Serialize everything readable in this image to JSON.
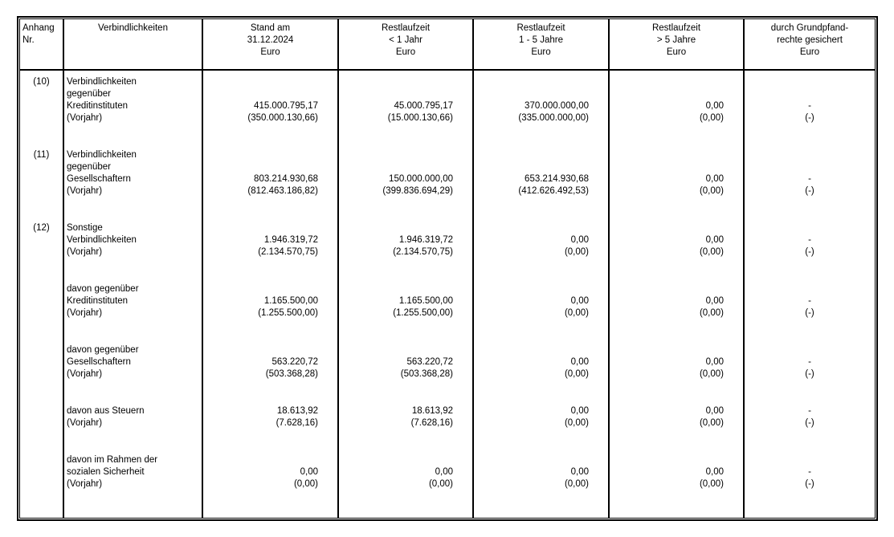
{
  "table": {
    "headers": {
      "anhang": {
        "line1": "Anhang",
        "line2": "Nr."
      },
      "verbindlichkeiten": {
        "line1": "Verbindlichkeiten"
      },
      "stand": {
        "line1": "Stand am",
        "line2": "31.12.2024",
        "line3": "Euro"
      },
      "lt1": {
        "line1": "Restlaufzeit",
        "line2": "< 1 Jahr",
        "line3": "Euro"
      },
      "y1to5": {
        "line1": "Restlaufzeit",
        "line2": "1 - 5 Jahre",
        "line3": "Euro"
      },
      "gt5": {
        "line1": "Restlaufzeit",
        "line2": "> 5 Jahre",
        "line3": "Euro"
      },
      "secured": {
        "line1": "durch Grundpfand-",
        "line2": "rechte gesichert",
        "line3": "Euro"
      }
    },
    "blocks": [
      {
        "anhang": "(10)",
        "rows": [
          {
            "label": "Verbindlichkeiten"
          },
          {
            "label": "gegenüber"
          },
          {
            "label": "Kreditinstituten",
            "stand": "415.000.795,17",
            "lt1": "45.000.795,17",
            "y1to5": "370.000.000,00",
            "gt5": "0,00",
            "secured": "-"
          },
          {
            "label": "(Vorjahr)",
            "stand": "(350.000.130,66)",
            "lt1": "(15.000.130,66)",
            "y1to5": "(335.000.000,00)",
            "gt5": "(0,00)",
            "secured": "(-)"
          }
        ]
      },
      {
        "anhang": "(11)",
        "rows": [
          {
            "label": "Verbindlichkeiten"
          },
          {
            "label": "gegenüber"
          },
          {
            "label": "Gesellschaftern",
            "stand": "803.214.930,68",
            "lt1": "150.000.000,00",
            "y1to5": "653.214.930,68",
            "gt5": "0,00",
            "secured": "-"
          },
          {
            "label": "(Vorjahr)",
            "stand": "(812.463.186,82)",
            "lt1": "(399.836.694,29)",
            "y1to5": "(412.626.492,53)",
            "gt5": "(0,00)",
            "secured": "(-)"
          }
        ]
      },
      {
        "anhang": "(12)",
        "rows": [
          {
            "label": "Sonstige"
          },
          {
            "label": "Verbindlichkeiten",
            "stand": "1.946.319,72",
            "lt1": "1.946.319,72",
            "y1to5": "0,00",
            "gt5": "0,00",
            "secured": "-"
          },
          {
            "label": "(Vorjahr)",
            "stand": "(2.134.570,75)",
            "lt1": "(2.134.570,75)",
            "y1to5": "(0,00)",
            "gt5": "(0,00)",
            "secured": "(-)"
          }
        ]
      },
      {
        "anhang": "",
        "rows": [
          {
            "label": "davon gegenüber"
          },
          {
            "label": "Kreditinstituten",
            "stand": "1.165.500,00",
            "lt1": "1.165.500,00",
            "y1to5": "0,00",
            "gt5": "0,00",
            "secured": "-"
          },
          {
            "label": "(Vorjahr)",
            "stand": "(1.255.500,00)",
            "lt1": "(1.255.500,00)",
            "y1to5": "(0,00)",
            "gt5": "(0,00)",
            "secured": "(-)"
          }
        ]
      },
      {
        "anhang": "",
        "rows": [
          {
            "label": "davon gegenüber"
          },
          {
            "label": "Gesellschaftern",
            "stand": "563.220,72",
            "lt1": "563.220,72",
            "y1to5": "0,00",
            "gt5": "0,00",
            "secured": "-"
          },
          {
            "label": "(Vorjahr)",
            "stand": "(503.368,28)",
            "lt1": "(503.368,28)",
            "y1to5": "(0,00)",
            "gt5": "(0,00)",
            "secured": "(-)"
          }
        ]
      },
      {
        "anhang": "",
        "rows": [
          {
            "label": "davon aus Steuern",
            "stand": "18.613,92",
            "lt1": "18.613,92",
            "y1to5": "0,00",
            "gt5": "0,00",
            "secured": "-"
          },
          {
            "label": "(Vorjahr)",
            "stand": "(7.628,16)",
            "lt1": "(7.628,16)",
            "y1to5": "(0,00)",
            "gt5": "(0,00)",
            "secured": "(-)"
          }
        ]
      },
      {
        "anhang": "",
        "rows": [
          {
            "label": "davon im Rahmen der"
          },
          {
            "label": "sozialen Sicherheit",
            "stand": "0,00",
            "lt1": "0,00",
            "y1to5": "0,00",
            "gt5": "0,00",
            "secured": "-"
          },
          {
            "label": "(Vorjahr)",
            "stand": "(0,00)",
            "lt1": "(0,00)",
            "y1to5": "(0,00)",
            "gt5": "(0,00)",
            "secured": "(-)"
          }
        ]
      }
    ]
  }
}
